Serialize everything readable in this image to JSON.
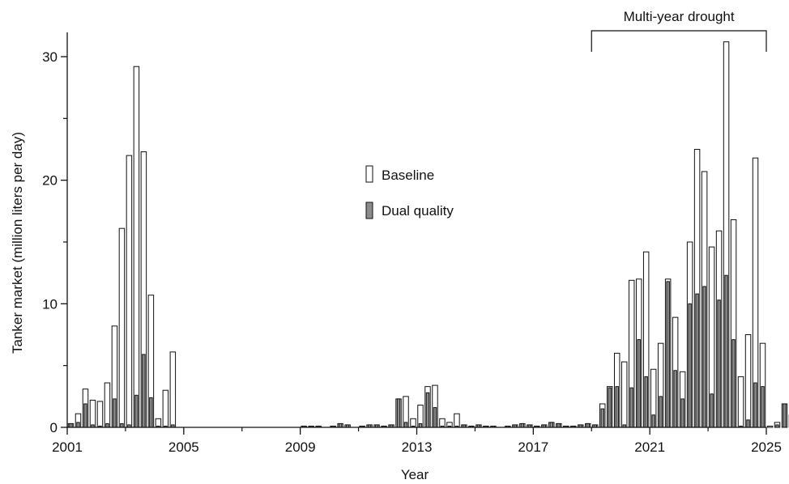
{
  "chart_data": {
    "type": "bar",
    "xlabel": "Year",
    "ylabel": "Tanker market  (million liters per day)",
    "xlim": [
      2001,
      2025
    ],
    "ylim": [
      0,
      31
    ],
    "x_ticks": [
      2001,
      2005,
      2009,
      2013,
      2017,
      2021,
      2025
    ],
    "x_tick_labels": [
      "2001",
      "2005",
      "2009",
      "2013",
      "2017",
      "2021",
      "2025"
    ],
    "y_ticks": [
      0,
      10,
      20,
      30
    ],
    "y_tick_labels": [
      "0",
      "10",
      "20",
      "30"
    ],
    "bar_interval_years": 0.25,
    "legend_position": "center",
    "grid": false,
    "annotation": {
      "label": "Multi-year drought",
      "x_start": 2019.0,
      "x_end": 2025.0
    },
    "colors": {
      "baseline": "#ffffff",
      "dual": "#8c8c8c",
      "stroke": "#111111"
    },
    "series": [
      {
        "name": "Baseline",
        "values": [
          0.3,
          1.1,
          3.1,
          2.2,
          2.1,
          3.6,
          8.2,
          16.1,
          22.0,
          29.2,
          22.3,
          10.7,
          0.7,
          3.0,
          6.1,
          0,
          0,
          0,
          0,
          0,
          0,
          0,
          0,
          0,
          0,
          0,
          0,
          0,
          0,
          0,
          0,
          0,
          0.1,
          0.1,
          0.1,
          0,
          0.1,
          0.3,
          0.2,
          0,
          0.1,
          0.2,
          0.2,
          0.1,
          0.2,
          2.3,
          2.5,
          0.7,
          1.8,
          3.3,
          3.4,
          0.7,
          0.4,
          1.1,
          0.2,
          0.1,
          0.2,
          0.1,
          0.1,
          0,
          0.1,
          0.2,
          0.3,
          0.2,
          0.1,
          0.2,
          0.4,
          0.3,
          0.1,
          0.1,
          0.2,
          0.3,
          0.2,
          1.9,
          3.3,
          6.0,
          5.3,
          11.9,
          12.0,
          14.2,
          4.7,
          6.8,
          12.0,
          8.9,
          4.5,
          15.0,
          22.5,
          20.7,
          14.6,
          15.9,
          31.2,
          16.8,
          4.1,
          7.5,
          21.8,
          6.8,
          0.1,
          0.4,
          1.9,
          1.0
        ]
      },
      {
        "name": "Dual quality",
        "values": [
          0.3,
          0.4,
          1.9,
          0.2,
          0.1,
          0.3,
          2.3,
          0.3,
          0.2,
          2.6,
          5.9,
          2.4,
          0.1,
          0.1,
          0.2,
          0,
          0,
          0,
          0,
          0,
          0,
          0,
          0,
          0,
          0,
          0,
          0,
          0,
          0,
          0,
          0,
          0,
          0.1,
          0.1,
          0.1,
          0,
          0.1,
          0.3,
          0.2,
          0,
          0.1,
          0.2,
          0.2,
          0.1,
          0.2,
          2.3,
          0.4,
          0.1,
          0.3,
          2.8,
          1.6,
          0.1,
          0.1,
          0.1,
          0.2,
          0.1,
          0.2,
          0.1,
          0.1,
          0,
          0.1,
          0.2,
          0.3,
          0.2,
          0.1,
          0.2,
          0.4,
          0.3,
          0.1,
          0.1,
          0.2,
          0.3,
          0.2,
          1.5,
          3.2,
          3.3,
          0.2,
          3.2,
          7.1,
          4.1,
          1.0,
          2.5,
          11.8,
          4.6,
          2.3,
          10.0,
          10.8,
          11.4,
          2.7,
          10.3,
          12.3,
          7.1,
          0.1,
          0.6,
          3.6,
          3.3,
          0,
          0.2,
          1.9,
          0.5
        ]
      }
    ]
  }
}
